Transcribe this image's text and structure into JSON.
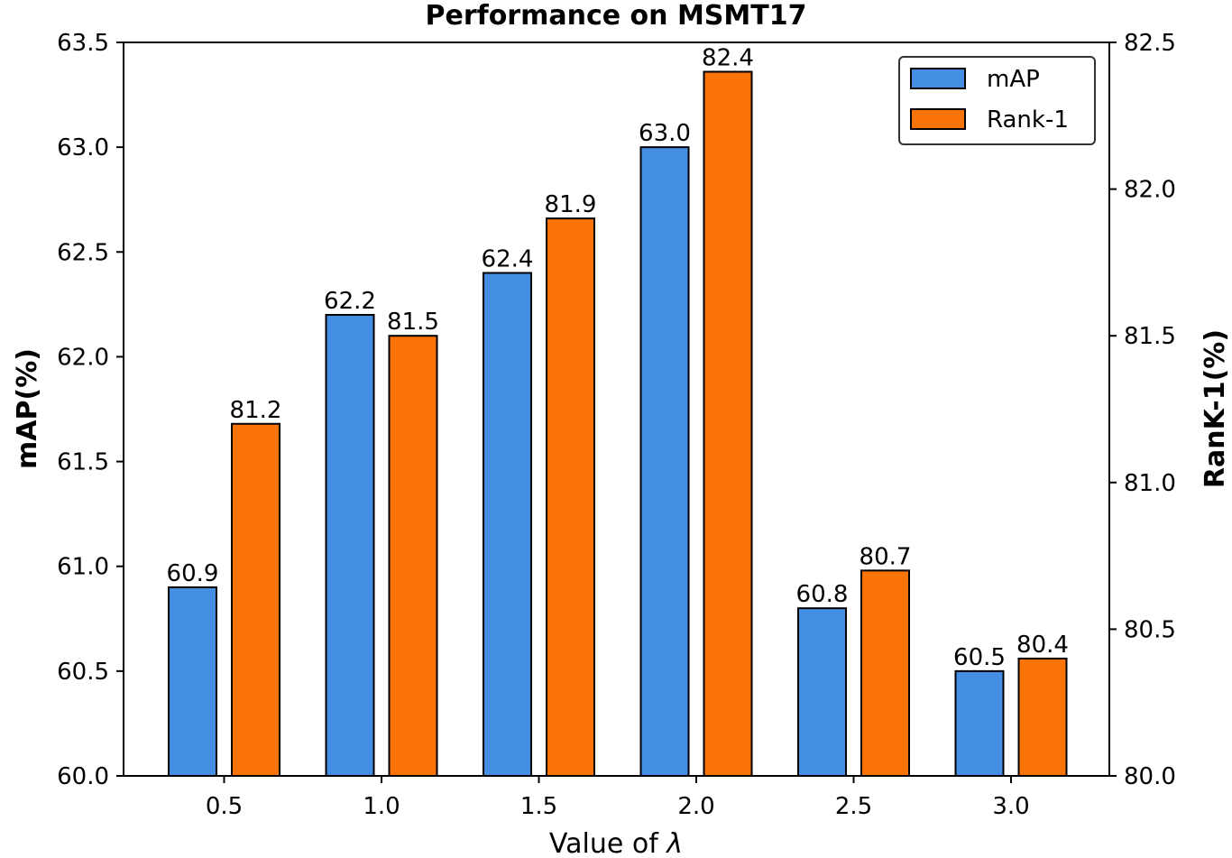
{
  "chart_data": {
    "type": "bar",
    "title": "Performance on MSMT17",
    "xlabel_prefix": "Value of ",
    "xlabel_symbol": "λ",
    "ylabel_left": "mAP(%)",
    "ylabel_right": "RanK-1(%)",
    "categories": [
      "0.5",
      "1.0",
      "1.5",
      "2.0",
      "2.5",
      "3.0"
    ],
    "ylim_left": [
      60.0,
      63.5
    ],
    "ylim_right": [
      80.0,
      82.5
    ],
    "yticks_left": [
      "60.0",
      "60.5",
      "61.0",
      "61.5",
      "62.0",
      "62.5",
      "63.0",
      "63.5"
    ],
    "yticks_right": [
      "80.0",
      "80.5",
      "81.0",
      "81.5",
      "82.0",
      "82.5"
    ],
    "legend_position": "top-right",
    "grid": false,
    "series": [
      {
        "name": "mAP",
        "axis": "left",
        "color": "#448ee4",
        "values": [
          60.9,
          62.2,
          62.4,
          63.0,
          60.8,
          60.5
        ],
        "labels": [
          "60.9",
          "62.2",
          "62.4",
          "63.0",
          "60.8",
          "60.5"
        ]
      },
      {
        "name": "Rank-1",
        "axis": "right",
        "color": "#f97306",
        "values": [
          81.2,
          81.5,
          81.9,
          82.4,
          80.7,
          80.4
        ],
        "labels": [
          "81.2",
          "81.5",
          "81.9",
          "82.4",
          "80.7",
          "80.4"
        ]
      }
    ]
  }
}
